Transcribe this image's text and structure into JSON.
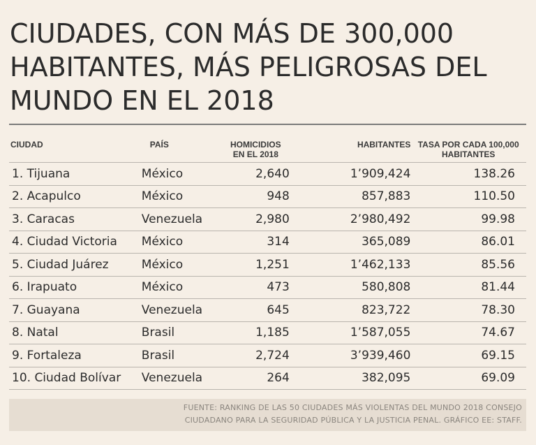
{
  "title": {
    "line1": "CIUDADES, CON MÁS DE 300,000",
    "line2": "HABITANTES, MÁS PELIGROSAS DEL",
    "line3": "MUNDO EN EL 2018"
  },
  "table": {
    "headers": {
      "city": "CIUDAD",
      "country": "PAÍS",
      "homicides_line1": "HOMICIDIOS",
      "homicides_line2": "EN EL 2018",
      "population": "HABITANTES",
      "rate_line1": "TASA POR CADA 100,000",
      "rate_line2": "HABITANTES"
    },
    "rows": [
      {
        "city": "1. Tijuana",
        "country": "México",
        "homicides": "2,640",
        "population": "1’909,424",
        "rate": "138.26"
      },
      {
        "city": "2. Acapulco",
        "country": "México",
        "homicides": "948",
        "population": "857,883",
        "rate": "110.50"
      },
      {
        "city": "3. Caracas",
        "country": "Venezuela",
        "homicides": "2,980",
        "population": "2’980,492",
        "rate": "99.98"
      },
      {
        "city": "4. Ciudad Victoria",
        "country": "México",
        "homicides": "314",
        "population": "365,089",
        "rate": "86.01"
      },
      {
        "city": "5. Ciudad Juárez",
        "country": "México",
        "homicides": "1,251",
        "population": "1’462,133",
        "rate": "85.56"
      },
      {
        "city": "6. Irapuato",
        "country": "México",
        "homicides": "473",
        "population": "580,808",
        "rate": "81.44"
      },
      {
        "city": "7. Guayana",
        "country": "Venezuela",
        "homicides": "645",
        "population": "823,722",
        "rate": "78.30"
      },
      {
        "city": "8. Natal",
        "country": "Brasil",
        "homicides": "1,185",
        "population": "1’587,055",
        "rate": "74.67"
      },
      {
        "city": "9. Fortaleza",
        "country": "Brasil",
        "homicides": "2,724",
        "population": "3’939,460",
        "rate": "69.15"
      },
      {
        "city": "10. Ciudad Bolívar",
        "country": "Venezuela",
        "homicides": "264",
        "population": "382,095",
        "rate": "69.09"
      }
    ]
  },
  "source": {
    "line1": "FUENTE: RANKING DE LAS 50 CIUDADES MÁS VIOLENTAS DEL MUNDO 2018 CONSEJO",
    "line2": "CIUDADANO PARA LA SEGURIDAD PÚBLICA Y LA JUSTICIA PENAL. GRÁFICO EE: STAFF."
  }
}
